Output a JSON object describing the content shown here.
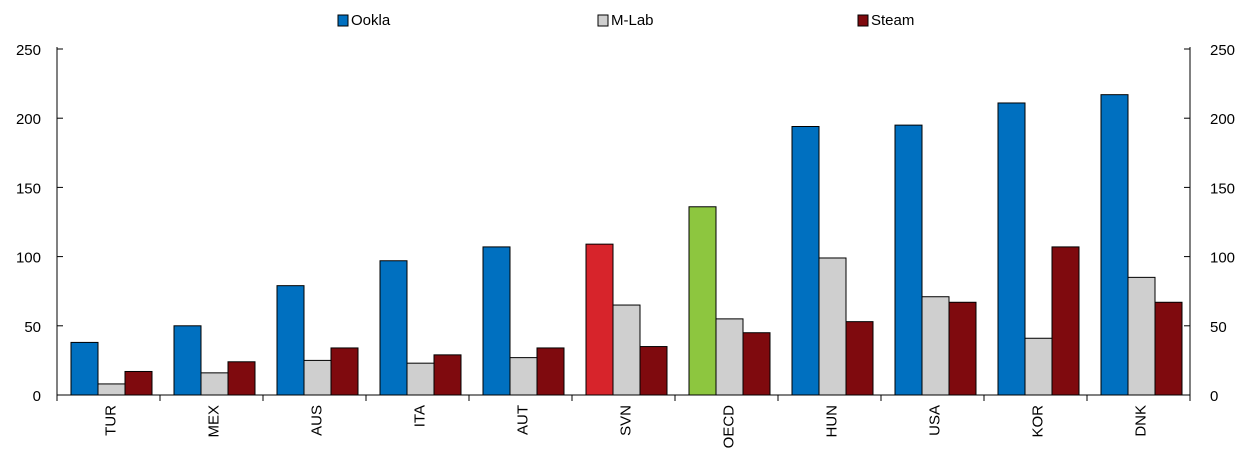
{
  "chart_data": {
    "type": "bar",
    "categories": [
      "TUR",
      "MEX",
      "AUS",
      "ITA",
      "AUT",
      "SVN",
      "OECD",
      "HUN",
      "USA",
      "KOR",
      "DNK"
    ],
    "series": [
      {
        "name": "Ookla",
        "color": "#0070c0",
        "values": [
          38,
          50,
          79,
          97,
          107,
          109,
          136,
          194,
          195,
          211,
          217
        ]
      },
      {
        "name": "M-Lab",
        "color": "#cfcfcf",
        "values": [
          8,
          16,
          25,
          23,
          27,
          65,
          55,
          99,
          71,
          41,
          85
        ]
      },
      {
        "name": "Steam",
        "color": "#7f0a0e",
        "values": [
          17,
          24,
          34,
          29,
          34,
          35,
          45,
          53,
          67,
          107,
          67
        ]
      }
    ],
    "highlights": [
      {
        "category": "SVN",
        "series": "Ookla",
        "color": "#d7242b"
      },
      {
        "category": "OECD",
        "series": "Ookla",
        "color": "#8dc63f"
      }
    ],
    "ylim": [
      0,
      250
    ],
    "yticks": [
      0,
      50,
      100,
      150,
      200,
      250
    ],
    "ylabel": "",
    "xlabel": "",
    "secondary_axis": true,
    "legend": "top-center",
    "grid": false
  }
}
